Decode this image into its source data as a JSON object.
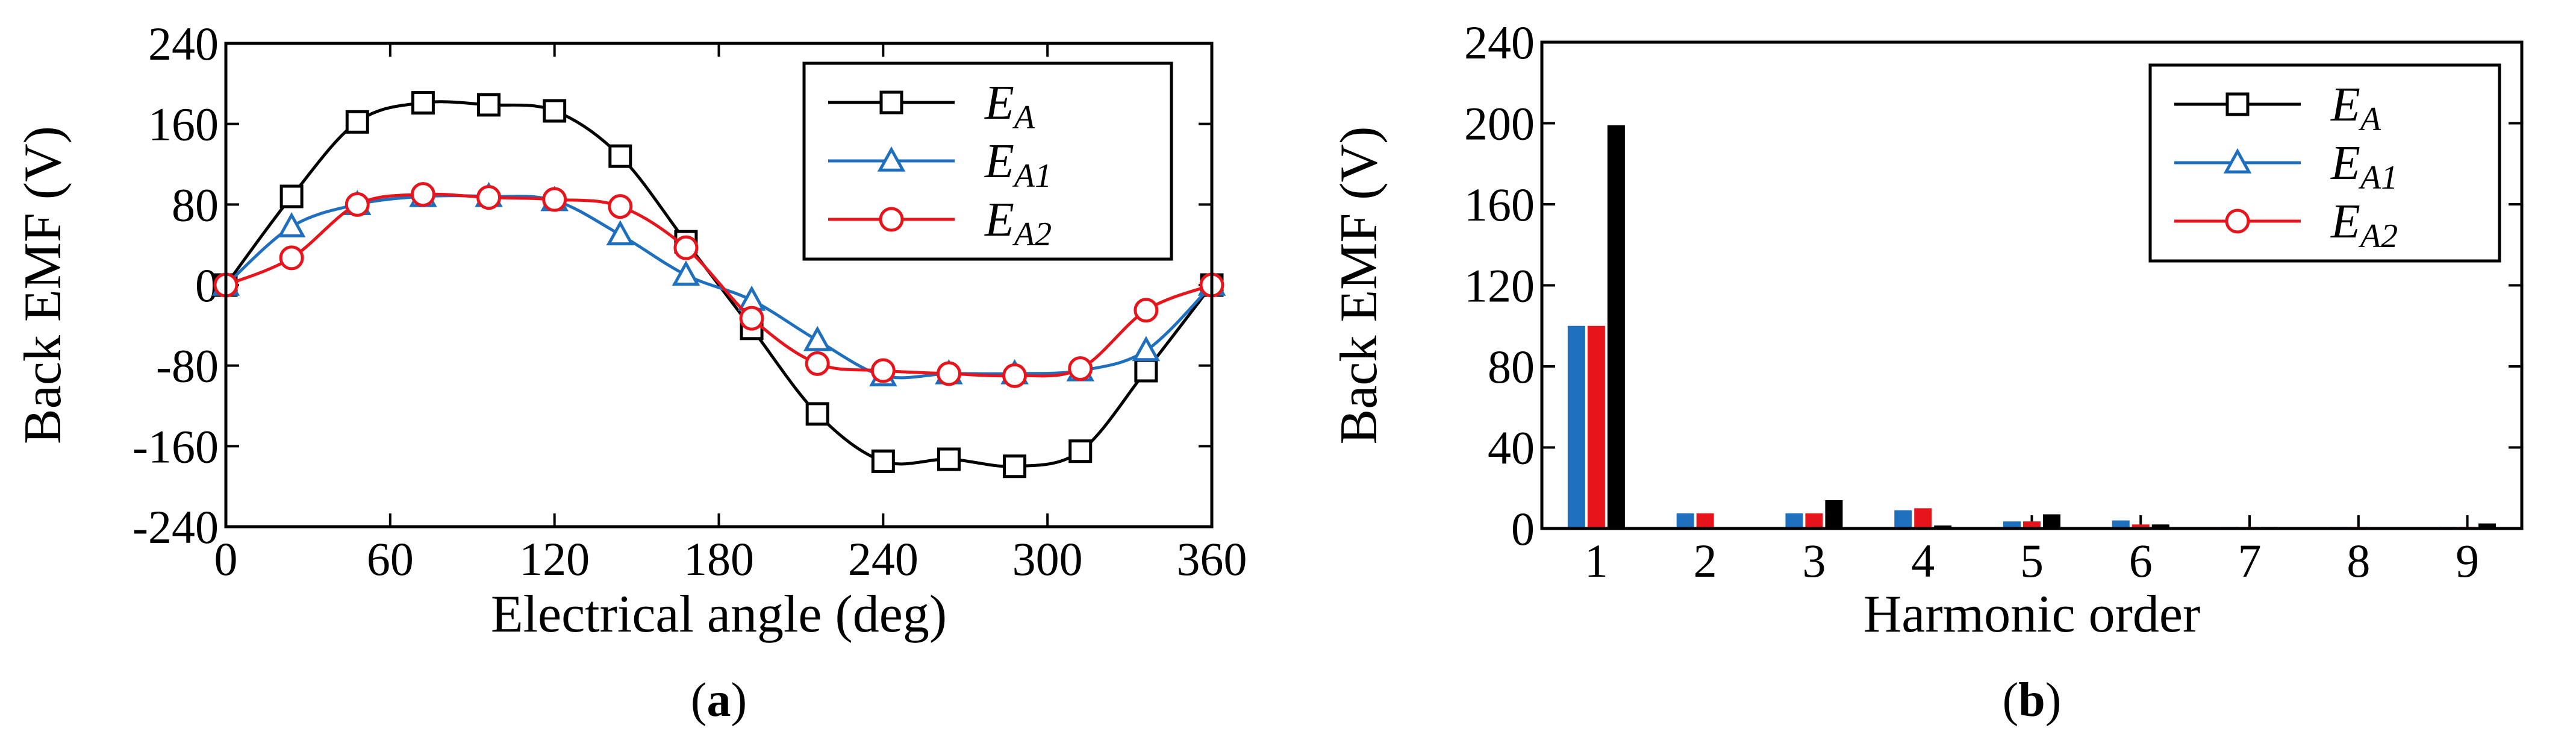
{
  "chart_data": [
    {
      "id": "a",
      "type": "line",
      "xlabel": "Electrical angle (deg)",
      "ylabel": "Back EMF (V)",
      "xlim": [
        0,
        360
      ],
      "ylim": [
        -240,
        240
      ],
      "xticks": [
        "0",
        "60",
        "120",
        "180",
        "240",
        "300",
        "360"
      ],
      "yticks": [
        "240",
        "160",
        "80",
        "0",
        "-80",
        "-160",
        "-240"
      ],
      "caption": "(a)",
      "legend_position": "top-right",
      "series": [
        {
          "name": "E_A",
          "legend_main": "E",
          "legend_sub": "A",
          "color": "#000000",
          "marker": "square",
          "x": [
            0,
            24,
            48,
            72,
            96,
            120,
            144,
            168,
            192,
            216,
            240,
            264,
            288,
            312,
            336,
            360
          ],
          "y": [
            0,
            88,
            162,
            181,
            179,
            173,
            128,
            43,
            -43,
            -128,
            -175,
            -173,
            -180,
            -165,
            -85,
            0
          ]
        },
        {
          "name": "E_A1",
          "legend_main": "E",
          "legend_sub": "A1",
          "color": "#1f6fbf",
          "marker": "triangle",
          "x": [
            0,
            24,
            48,
            72,
            96,
            120,
            144,
            168,
            192,
            216,
            240,
            264,
            288,
            312,
            336,
            360
          ],
          "y": [
            0,
            58,
            80,
            88,
            88,
            84,
            50,
            10,
            -15,
            -55,
            -90,
            -88,
            -88,
            -85,
            -65,
            0
          ]
        },
        {
          "name": "E_A2",
          "legend_main": "E",
          "legend_sub": "A2",
          "color": "#e8141c",
          "marker": "circle",
          "x": [
            0,
            24,
            48,
            72,
            96,
            120,
            144,
            168,
            192,
            216,
            240,
            264,
            288,
            312,
            336,
            360
          ],
          "y": [
            0,
            27,
            80,
            90,
            87,
            85,
            78,
            37,
            -33,
            -78,
            -85,
            -88,
            -90,
            -83,
            -25,
            0
          ]
        }
      ]
    },
    {
      "id": "b",
      "type": "bar",
      "xlabel": "Harmonic order",
      "ylabel": "Back EMF (V)",
      "ylim": [
        0,
        240
      ],
      "categories": [
        "1",
        "2",
        "3",
        "4",
        "5",
        "6",
        "7",
        "8",
        "9"
      ],
      "yticks": [
        "240",
        "200",
        "160",
        "120",
        "80",
        "40",
        "0"
      ],
      "caption": "(b)",
      "legend_position": "top-right",
      "series": [
        {
          "name": "E_A1",
          "legend_main": "E",
          "legend_sub": "A1",
          "color": "#1f6fbf",
          "marker": "triangle",
          "values": [
            100,
            7.5,
            7.5,
            9,
            3.5,
            4,
            0.8,
            0.8,
            0.8
          ]
        },
        {
          "name": "E_A2",
          "legend_main": "E",
          "legend_sub": "A2",
          "color": "#e8141c",
          "marker": "circle",
          "values": [
            100,
            7.5,
            7.5,
            10,
            3.5,
            2,
            0.8,
            0.8,
            0.8
          ]
        },
        {
          "name": "E_A",
          "legend_main": "E",
          "legend_sub": "A",
          "color": "#000000",
          "marker": "square",
          "values": [
            199,
            0.5,
            14,
            1.5,
            7,
            2,
            0.8,
            0.3,
            2.5
          ]
        }
      ],
      "legend_order": [
        2,
        0,
        1
      ]
    }
  ]
}
